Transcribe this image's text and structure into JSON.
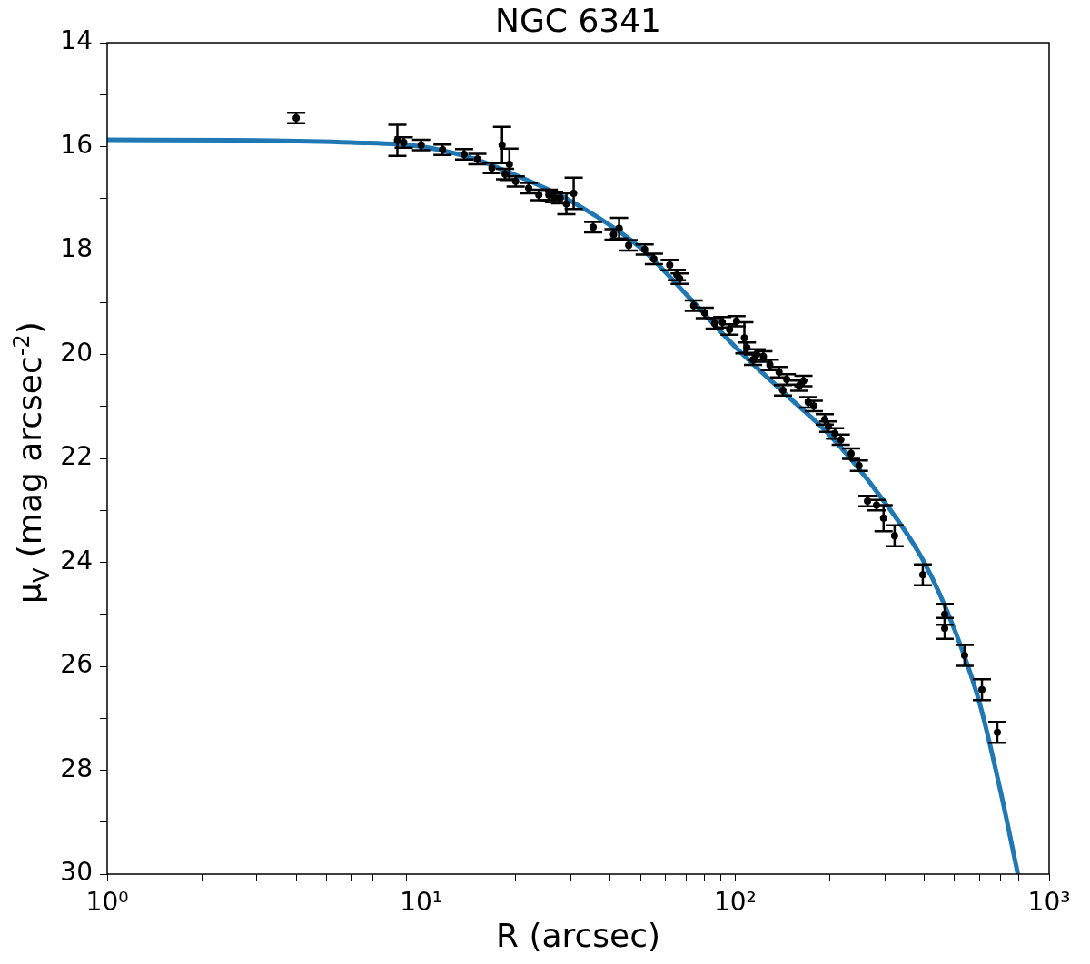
{
  "chart_data": {
    "type": "scatter",
    "title": "NGC 6341",
    "xlabel": "R (arcsec)",
    "ylabel": "μ$_{V}$ (mag arcsec$^{-2}$)",
    "log": "x",
    "grid": false,
    "legend": false,
    "marker": "circle",
    "xlim": [
      1,
      1000
    ],
    "xticks": [
      {
        "value": 1,
        "label": "10⁰"
      },
      {
        "value": 2,
        "label": null
      },
      {
        "value": 3,
        "label": null
      },
      {
        "value": 4,
        "label": null
      },
      {
        "value": 5,
        "label": null
      },
      {
        "value": 6,
        "label": null
      },
      {
        "value": 7,
        "label": null
      },
      {
        "value": 8,
        "label": null
      },
      {
        "value": 9,
        "label": null
      },
      {
        "value": 10,
        "label": "10¹"
      },
      {
        "value": 20,
        "label": null
      },
      {
        "value": 30,
        "label": null
      },
      {
        "value": 40,
        "label": null
      },
      {
        "value": 50,
        "label": null
      },
      {
        "value": 60,
        "label": null
      },
      {
        "value": 70,
        "label": null
      },
      {
        "value": 80,
        "label": null
      },
      {
        "value": 90,
        "label": null
      },
      {
        "value": 100,
        "label": "10²"
      },
      {
        "value": 200,
        "label": null
      },
      {
        "value": 300,
        "label": null
      },
      {
        "value": 400,
        "label": null
      },
      {
        "value": 500,
        "label": null
      },
      {
        "value": 600,
        "label": null
      },
      {
        "value": 700,
        "label": null
      },
      {
        "value": 800,
        "label": null
      },
      {
        "value": 900,
        "label": null
      },
      {
        "value": 1000,
        "label": "10³"
      }
    ],
    "ylim": [
      30,
      14
    ],
    "yticks": [
      14,
      {
        "value": 15,
        "label": null
      },
      16,
      {
        "value": 17,
        "label": null
      },
      18,
      {
        "value": 19,
        "label": null
      },
      20,
      {
        "value": 21,
        "label": null
      },
      22,
      {
        "value": 23,
        "label": null
      },
      24,
      {
        "value": 25,
        "label": null
      },
      26,
      {
        "value": 27,
        "label": null
      },
      28,
      {
        "value": 29,
        "label": null
      },
      30
    ],
    "series": [
      {
        "color": "#000000",
        "x": [
          4.0,
          8.4,
          8.8,
          10.0,
          11.7,
          13.7,
          15.1,
          16.8,
          18.1,
          18.5,
          19.1,
          20.0,
          22.0,
          23.7,
          25.5,
          26.5,
          27.7,
          29.0,
          30.6,
          35.3,
          41.0,
          42.7,
          45.8,
          51.5,
          55.1,
          61.9,
          65.2,
          66.6,
          73.8,
          80.0,
          86.0,
          91.0,
          96.0,
          101,
          107,
          109,
          114,
          117,
          123,
          129,
          138,
          142,
          146,
          160,
          165,
          171,
          178,
          193,
          198,
          208,
          217,
          234,
          248,
          264,
          282,
          297,
          322,
          396,
          465,
          465,
          538,
          611,
          684
        ],
        "values": [
          15.45,
          15.88,
          15.92,
          15.97,
          16.06,
          16.15,
          16.24,
          16.41,
          15.97,
          16.53,
          16.34,
          16.67,
          16.8,
          16.93,
          16.93,
          16.97,
          16.99,
          17.1,
          16.9,
          17.55,
          17.69,
          17.57,
          17.9,
          17.98,
          18.16,
          18.28,
          18.47,
          18.54,
          19.06,
          19.2,
          19.4,
          19.38,
          19.52,
          19.36,
          19.68,
          19.87,
          20.1,
          20.0,
          20.04,
          20.2,
          20.34,
          20.69,
          20.48,
          20.6,
          20.51,
          20.92,
          20.99,
          21.25,
          21.39,
          21.52,
          21.64,
          21.91,
          22.14,
          22.82,
          22.9,
          23.15,
          23.49,
          24.24,
          25.0,
          25.27,
          25.79,
          26.45,
          27.27
        ],
        "errors": [
          0.1,
          0.3,
          0.1,
          0.1,
          0.1,
          0.1,
          0.1,
          0.1,
          0.35,
          0.1,
          0.3,
          0.1,
          0.1,
          0.1,
          0.1,
          0.1,
          0.1,
          0.2,
          0.3,
          0.1,
          0.1,
          0.2,
          0.1,
          0.1,
          0.1,
          0.1,
          0.1,
          0.1,
          0.1,
          0.1,
          0.1,
          0.1,
          0.1,
          0.1,
          0.3,
          0.1,
          0.1,
          0.1,
          0.1,
          0.1,
          0.1,
          0.1,
          0.1,
          0.1,
          0.1,
          0.1,
          0.1,
          0.1,
          0.1,
          0.1,
          0.1,
          0.1,
          0.1,
          0.1,
          0.1,
          0.25,
          0.2,
          0.2,
          0.2,
          0.2,
          0.2,
          0.2,
          0.2
        ]
      },
      {
        "type": "line",
        "color": "#1f77b4",
        "marker": "none",
        "x": [
          1,
          3,
          6,
          10,
          15,
          20,
          30,
          50,
          70,
          100,
          150,
          200,
          300,
          400,
          500,
          600,
          700,
          795
        ],
        "values": [
          15.87,
          15.88,
          15.92,
          16.0,
          16.25,
          16.55,
          17.05,
          17.95,
          18.85,
          19.85,
          20.85,
          21.55,
          22.85,
          24.0,
          25.3,
          26.7,
          28.4,
          30.0
        ]
      }
    ]
  }
}
